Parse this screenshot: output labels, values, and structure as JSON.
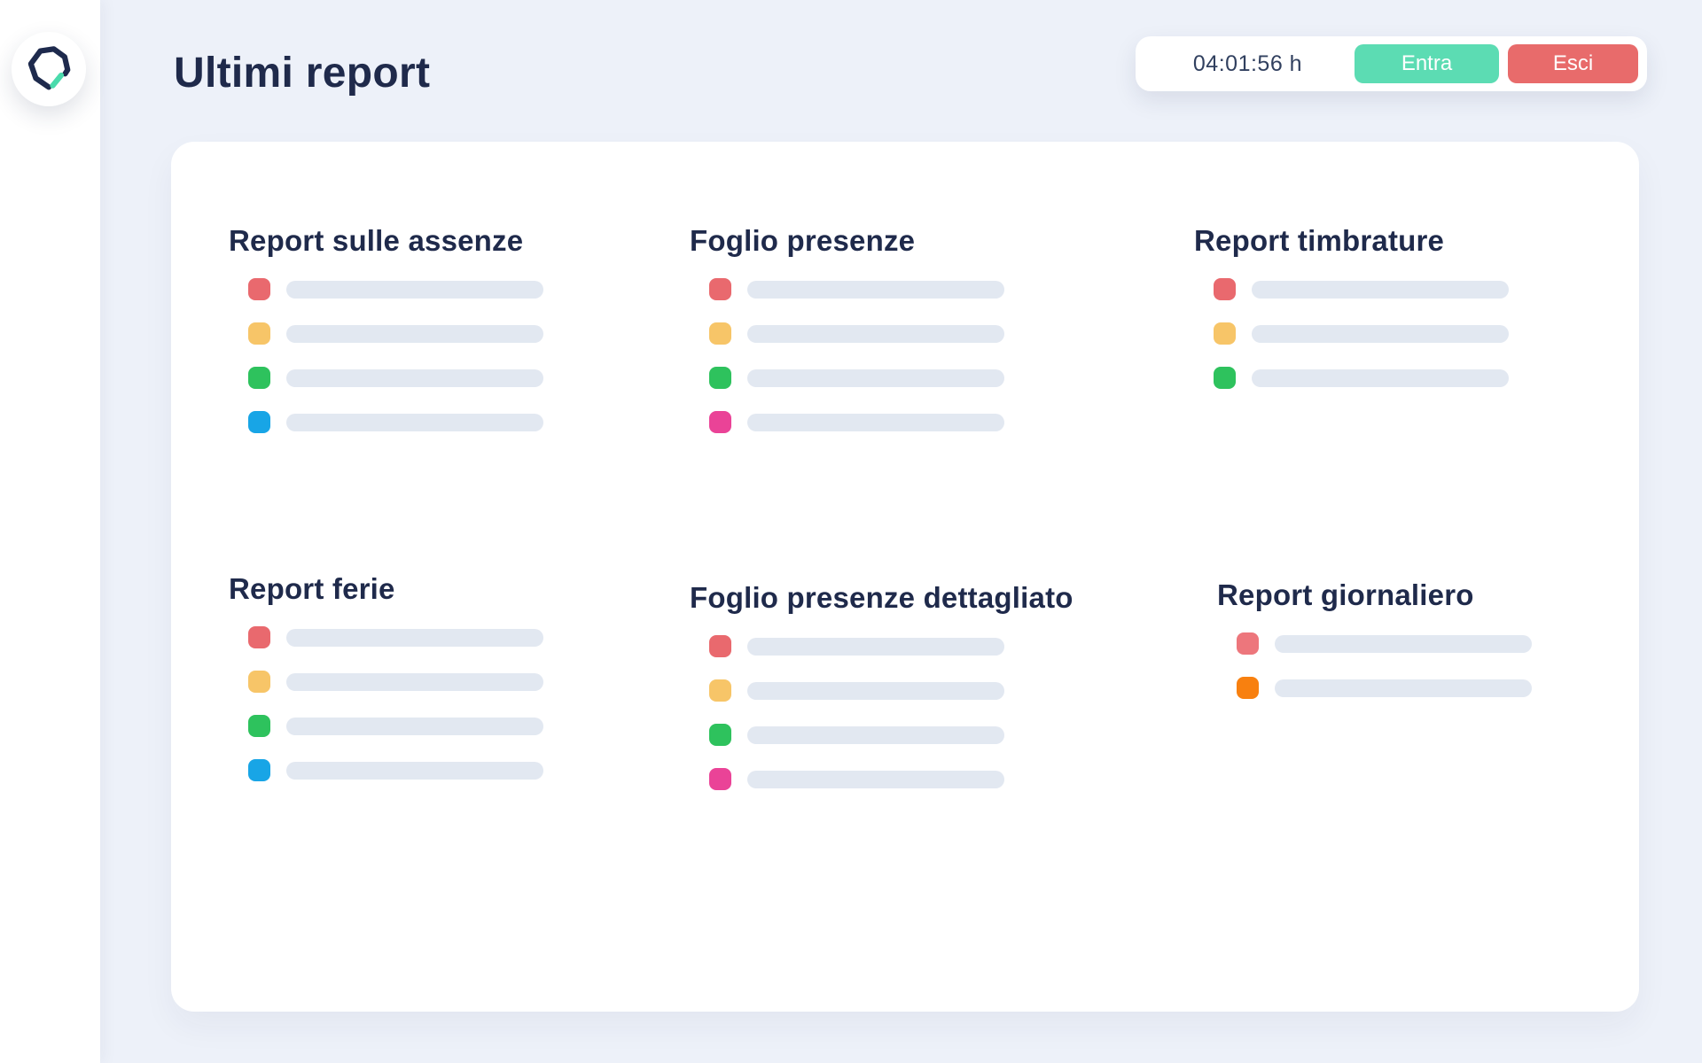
{
  "sidebar": {
    "logo_icon": "brand-logo-icon"
  },
  "header": {
    "title": "Ultimi report",
    "timer": {
      "time": "04:01:56 h",
      "clock_in_label": "Entra",
      "clock_out_label": "Esci"
    }
  },
  "reports": [
    {
      "title": "Report sulle assenze",
      "rows": [
        "red",
        "yellow",
        "green",
        "blue"
      ]
    },
    {
      "title": "Foglio presenze",
      "rows": [
        "red",
        "yellow",
        "green",
        "magenta"
      ]
    },
    {
      "title": "Report timbrature",
      "rows": [
        "red",
        "yellow",
        "green"
      ]
    },
    {
      "title": "Report ferie",
      "rows": [
        "red",
        "yellow",
        "green",
        "blue"
      ]
    },
    {
      "title": "Foglio presenze dettagliato",
      "rows": [
        "red",
        "yellow",
        "green",
        "magenta"
      ]
    },
    {
      "title": "Report giornaliero",
      "rows": [
        "salmon",
        "orange"
      ]
    }
  ],
  "colors": {
    "red": "#E9696E",
    "yellow": "#F7C568",
    "green": "#2EC25D",
    "blue": "#18A5E6",
    "magenta": "#EA4397",
    "salmon": "#ED767C",
    "orange": "#F8800F",
    "accent_green": "#5CDCB3",
    "accent_red": "#E86B6B",
    "navy_text": "#1F2A4B",
    "placeholder_bar": "#E2E8F1",
    "logo_stroke": "#1E2A4D",
    "logo_tick": "#4ADBAC",
    "background": "#EDF1F9"
  }
}
